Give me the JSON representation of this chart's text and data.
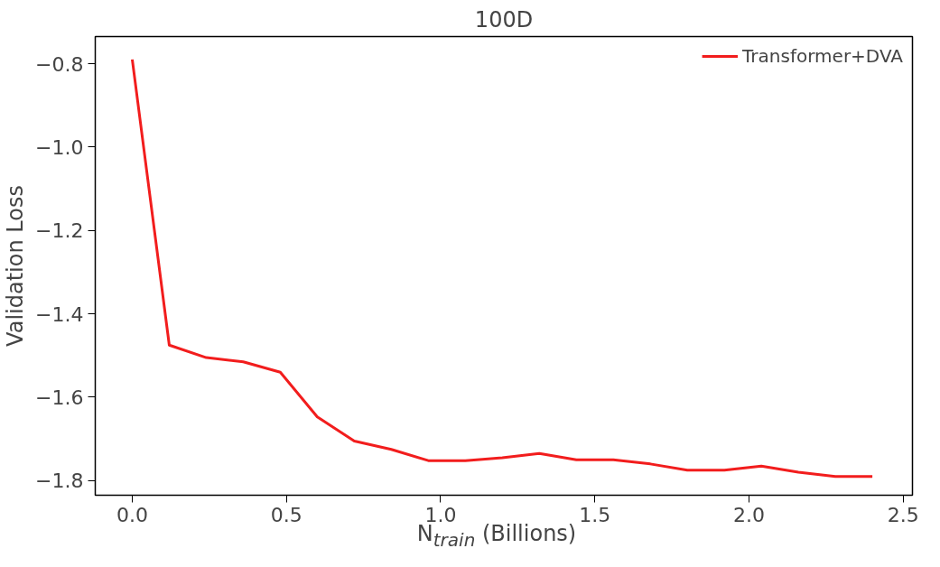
{
  "chart_data": {
    "type": "line",
    "title": "100D",
    "xlabel": "N$_{train}$ (Billions)",
    "ylabel": "Validation Loss",
    "x": [
      0,
      0.12,
      0.24,
      0.36,
      0.48,
      0.6,
      0.72,
      0.84,
      0.96,
      1.08,
      1.2,
      1.32,
      1.44,
      1.56,
      1.68,
      1.8,
      1.92,
      2.04,
      2.16,
      2.28,
      2.4
    ],
    "series": [
      {
        "name": "Transformer+DVA",
        "color": "#f21d1d",
        "values": [
          -0.79,
          -1.475,
          -1.505,
          -1.515,
          -1.54,
          -1.647,
          -1.705,
          -1.725,
          -1.752,
          -1.752,
          -1.745,
          -1.735,
          -1.75,
          -1.75,
          -1.76,
          -1.775,
          -1.775,
          -1.765,
          -1.78,
          -1.79,
          -1.79
        ]
      }
    ],
    "xlim": [
      -0.12,
      2.53
    ],
    "ylim": [
      -1.835,
      -0.735
    ],
    "xticks": [
      {
        "value": 0,
        "label": "0.0"
      },
      {
        "value": 0.5,
        "label": "0.5"
      },
      {
        "value": 1,
        "label": "1.0"
      },
      {
        "value": 1.5,
        "label": "1.5"
      },
      {
        "value": 2,
        "label": "2.0"
      },
      {
        "value": 2.5,
        "label": "2.5"
      }
    ],
    "yticks": [
      {
        "value": -0.8,
        "label": "−0.8"
      },
      {
        "value": -1,
        "label": "−1.0"
      },
      {
        "value": -1.2,
        "label": "−1.2"
      },
      {
        "value": -1.4,
        "label": "−1.4"
      },
      {
        "value": -1.6,
        "label": "−1.6"
      },
      {
        "value": -1.8,
        "label": "−1.8"
      }
    ],
    "grid": false,
    "legend": "top right",
    "line_style": "solid",
    "marker": "none"
  }
}
